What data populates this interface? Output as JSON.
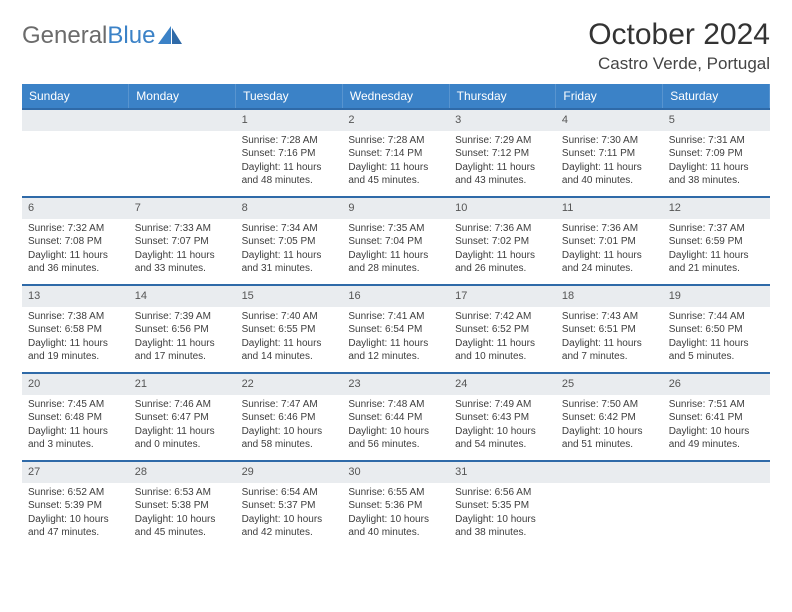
{
  "brand": {
    "part1": "General",
    "part2": "Blue"
  },
  "title": {
    "month": "October 2024",
    "location": "Castro Verde, Portugal"
  },
  "style": {
    "accent": "#3b82c7",
    "row_border": "#2f6aa8",
    "daynum_bg": "#e9ecef",
    "header_text": "#ffffff",
    "body_font_size": 10,
    "header_font_size": 12
  },
  "weekdays": [
    "Sunday",
    "Monday",
    "Tuesday",
    "Wednesday",
    "Thursday",
    "Friday",
    "Saturday"
  ],
  "weeks": [
    [
      {
        "n": "",
        "lines": []
      },
      {
        "n": "",
        "lines": []
      },
      {
        "n": "1",
        "lines": [
          "Sunrise: 7:28 AM",
          "Sunset: 7:16 PM",
          "Daylight: 11 hours and 48 minutes."
        ]
      },
      {
        "n": "2",
        "lines": [
          "Sunrise: 7:28 AM",
          "Sunset: 7:14 PM",
          "Daylight: 11 hours and 45 minutes."
        ]
      },
      {
        "n": "3",
        "lines": [
          "Sunrise: 7:29 AM",
          "Sunset: 7:12 PM",
          "Daylight: 11 hours and 43 minutes."
        ]
      },
      {
        "n": "4",
        "lines": [
          "Sunrise: 7:30 AM",
          "Sunset: 7:11 PM",
          "Daylight: 11 hours and 40 minutes."
        ]
      },
      {
        "n": "5",
        "lines": [
          "Sunrise: 7:31 AM",
          "Sunset: 7:09 PM",
          "Daylight: 11 hours and 38 minutes."
        ]
      }
    ],
    [
      {
        "n": "6",
        "lines": [
          "Sunrise: 7:32 AM",
          "Sunset: 7:08 PM",
          "Daylight: 11 hours and 36 minutes."
        ]
      },
      {
        "n": "7",
        "lines": [
          "Sunrise: 7:33 AM",
          "Sunset: 7:07 PM",
          "Daylight: 11 hours and 33 minutes."
        ]
      },
      {
        "n": "8",
        "lines": [
          "Sunrise: 7:34 AM",
          "Sunset: 7:05 PM",
          "Daylight: 11 hours and 31 minutes."
        ]
      },
      {
        "n": "9",
        "lines": [
          "Sunrise: 7:35 AM",
          "Sunset: 7:04 PM",
          "Daylight: 11 hours and 28 minutes."
        ]
      },
      {
        "n": "10",
        "lines": [
          "Sunrise: 7:36 AM",
          "Sunset: 7:02 PM",
          "Daylight: 11 hours and 26 minutes."
        ]
      },
      {
        "n": "11",
        "lines": [
          "Sunrise: 7:36 AM",
          "Sunset: 7:01 PM",
          "Daylight: 11 hours and 24 minutes."
        ]
      },
      {
        "n": "12",
        "lines": [
          "Sunrise: 7:37 AM",
          "Sunset: 6:59 PM",
          "Daylight: 11 hours and 21 minutes."
        ]
      }
    ],
    [
      {
        "n": "13",
        "lines": [
          "Sunrise: 7:38 AM",
          "Sunset: 6:58 PM",
          "Daylight: 11 hours and 19 minutes."
        ]
      },
      {
        "n": "14",
        "lines": [
          "Sunrise: 7:39 AM",
          "Sunset: 6:56 PM",
          "Daylight: 11 hours and 17 minutes."
        ]
      },
      {
        "n": "15",
        "lines": [
          "Sunrise: 7:40 AM",
          "Sunset: 6:55 PM",
          "Daylight: 11 hours and 14 minutes."
        ]
      },
      {
        "n": "16",
        "lines": [
          "Sunrise: 7:41 AM",
          "Sunset: 6:54 PM",
          "Daylight: 11 hours and 12 minutes."
        ]
      },
      {
        "n": "17",
        "lines": [
          "Sunrise: 7:42 AM",
          "Sunset: 6:52 PM",
          "Daylight: 11 hours and 10 minutes."
        ]
      },
      {
        "n": "18",
        "lines": [
          "Sunrise: 7:43 AM",
          "Sunset: 6:51 PM",
          "Daylight: 11 hours and 7 minutes."
        ]
      },
      {
        "n": "19",
        "lines": [
          "Sunrise: 7:44 AM",
          "Sunset: 6:50 PM",
          "Daylight: 11 hours and 5 minutes."
        ]
      }
    ],
    [
      {
        "n": "20",
        "lines": [
          "Sunrise: 7:45 AM",
          "Sunset: 6:48 PM",
          "Daylight: 11 hours and 3 minutes."
        ]
      },
      {
        "n": "21",
        "lines": [
          "Sunrise: 7:46 AM",
          "Sunset: 6:47 PM",
          "Daylight: 11 hours and 0 minutes."
        ]
      },
      {
        "n": "22",
        "lines": [
          "Sunrise: 7:47 AM",
          "Sunset: 6:46 PM",
          "Daylight: 10 hours and 58 minutes."
        ]
      },
      {
        "n": "23",
        "lines": [
          "Sunrise: 7:48 AM",
          "Sunset: 6:44 PM",
          "Daylight: 10 hours and 56 minutes."
        ]
      },
      {
        "n": "24",
        "lines": [
          "Sunrise: 7:49 AM",
          "Sunset: 6:43 PM",
          "Daylight: 10 hours and 54 minutes."
        ]
      },
      {
        "n": "25",
        "lines": [
          "Sunrise: 7:50 AM",
          "Sunset: 6:42 PM",
          "Daylight: 10 hours and 51 minutes."
        ]
      },
      {
        "n": "26",
        "lines": [
          "Sunrise: 7:51 AM",
          "Sunset: 6:41 PM",
          "Daylight: 10 hours and 49 minutes."
        ]
      }
    ],
    [
      {
        "n": "27",
        "lines": [
          "Sunrise: 6:52 AM",
          "Sunset: 5:39 PM",
          "Daylight: 10 hours and 47 minutes."
        ]
      },
      {
        "n": "28",
        "lines": [
          "Sunrise: 6:53 AM",
          "Sunset: 5:38 PM",
          "Daylight: 10 hours and 45 minutes."
        ]
      },
      {
        "n": "29",
        "lines": [
          "Sunrise: 6:54 AM",
          "Sunset: 5:37 PM",
          "Daylight: 10 hours and 42 minutes."
        ]
      },
      {
        "n": "30",
        "lines": [
          "Sunrise: 6:55 AM",
          "Sunset: 5:36 PM",
          "Daylight: 10 hours and 40 minutes."
        ]
      },
      {
        "n": "31",
        "lines": [
          "Sunrise: 6:56 AM",
          "Sunset: 5:35 PM",
          "Daylight: 10 hours and 38 minutes."
        ]
      },
      {
        "n": "",
        "lines": []
      },
      {
        "n": "",
        "lines": []
      }
    ]
  ]
}
